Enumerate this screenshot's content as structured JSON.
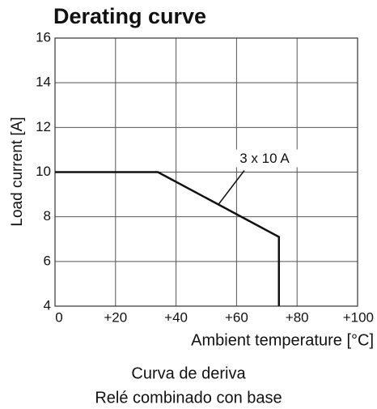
{
  "chart_data": {
    "type": "line",
    "title": "Derating curve",
    "y_label": "Load current [A]",
    "x_label": "Ambient temperature [°C]",
    "caption": [
      "Curva de deriva",
      "Relé combinado con base"
    ],
    "x": [
      0,
      34,
      74,
      74
    ],
    "series": [
      {
        "name": "3 x 10 A",
        "color": "#111111",
        "values": [
          10,
          10,
          7.1,
          4
        ]
      }
    ],
    "xlim": [
      0,
      100
    ],
    "xticks": [
      0,
      {
        "value": 20,
        "label": "+20"
      },
      {
        "value": 40,
        "label": "+40"
      },
      {
        "value": 60,
        "label": "+60"
      },
      {
        "value": 80,
        "label": "+80"
      },
      {
        "value": 100,
        "label": "+100"
      }
    ],
    "ylim": [
      4,
      16
    ],
    "yticks": [
      4,
      6,
      8,
      10,
      12,
      14,
      16
    ],
    "grid": true
  }
}
